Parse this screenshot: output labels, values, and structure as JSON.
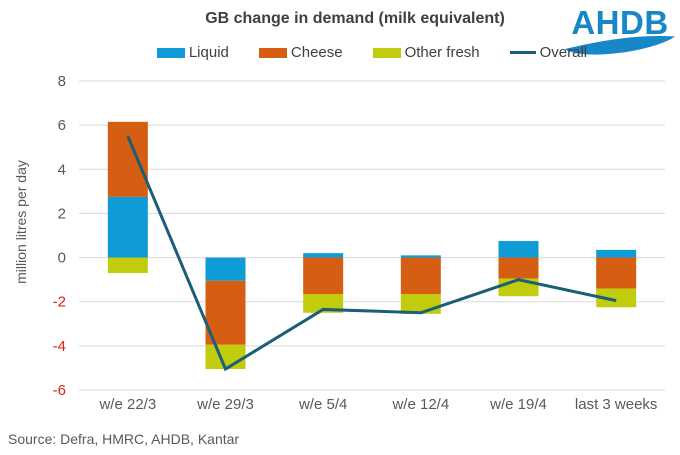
{
  "chart_data": {
    "type": "bar",
    "subtype": "stacked-bar-with-line-overlay",
    "title": "GB change in demand (milk equivalent)",
    "categories": [
      "w/e 22/3",
      "w/e 29/3",
      "w/e 5/4",
      "w/e 12/4",
      "w/e 19/4",
      "last 3 weeks"
    ],
    "series": [
      {
        "name": "Liquid",
        "type": "bar",
        "color": "#0F9BD5",
        "values": [
          2.75,
          -1.05,
          0.2,
          0.1,
          0.75,
          0.35
        ]
      },
      {
        "name": "Cheese",
        "type": "bar",
        "color": "#D55E13",
        "values": [
          3.4,
          -2.9,
          -1.65,
          -1.65,
          -0.95,
          -1.4
        ]
      },
      {
        "name": "Other fresh",
        "type": "bar",
        "color": "#C2CC0E",
        "values": [
          -0.7,
          -1.1,
          -0.85,
          -0.9,
          -0.8,
          -0.85
        ]
      },
      {
        "name": "Overall",
        "type": "line",
        "color": "#1A5E78",
        "values": [
          5.5,
          -5.05,
          -2.35,
          -2.5,
          -1.0,
          -1.95
        ]
      }
    ],
    "xlabel": "",
    "ylabel": "million litres per day",
    "ylim": [
      -6,
      8
    ],
    "ytick_step": 2,
    "grid": true,
    "legend_position": "top",
    "colors": {
      "title": "#404040",
      "legend_text": "#404040",
      "tick_label": "#595959",
      "negative_tick_label": "#E0201C",
      "gridline": "#D9D9D9"
    }
  },
  "logo": {
    "text": "AHDB",
    "color": "#1787C8"
  },
  "source": "Source: Defra, HMRC, AHDB, Kantar"
}
